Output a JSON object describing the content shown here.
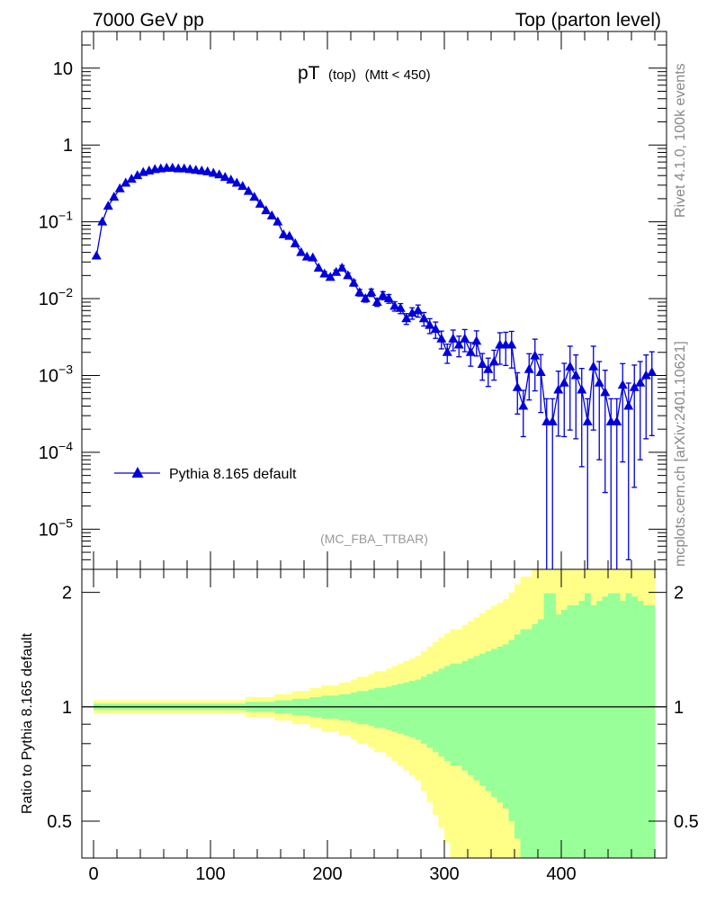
{
  "header": {
    "left": "7000 GeV pp",
    "right": "Top (parton level)"
  },
  "side": {
    "rivet": "Rivet 4.1.0,  100k events",
    "mcplots": "mcplots.cern.ch [arXiv:2401.10621]"
  },
  "colors": {
    "series": "#0000dd",
    "band_inner": "#99ff99",
    "band_outer": "#ffff88"
  },
  "chart_data": [
    {
      "type": "line",
      "title": "pT",
      "title_sub": "(top)",
      "title_cut": "(Mtt < 450)",
      "analysis": "(MC_FBA_TTBAR)",
      "xlabel": "",
      "ylabel": "",
      "yscale": "log",
      "ylim": [
        3e-06,
        30
      ],
      "xlim": [
        -10,
        490
      ],
      "y_tick_labels": [
        "10",
        "1",
        "10^-1",
        "10^-2",
        "10^-3",
        "10^-4",
        "10^-5"
      ],
      "y_tick_values": [
        10,
        1,
        0.1,
        0.01,
        0.001,
        0.0001,
        1e-05
      ],
      "series": [
        {
          "name": "Pythia 8.165 default",
          "marker": "triangle",
          "x": [
            2.5,
            7.5,
            12.5,
            17.5,
            22.5,
            27.5,
            32.5,
            37.5,
            42.5,
            47.5,
            52.5,
            57.5,
            62.5,
            67.5,
            72.5,
            77.5,
            82.5,
            87.5,
            92.5,
            97.5,
            102.5,
            107.5,
            112.5,
            117.5,
            122.5,
            127.5,
            132.5,
            137.5,
            142.5,
            147.5,
            152.5,
            157.5,
            162.5,
            167.5,
            172.5,
            177.5,
            182.5,
            187.5,
            192.5,
            197.5,
            202.5,
            207.5,
            212.5,
            217.5,
            222.5,
            227.5,
            232.5,
            237.5,
            242.5,
            247.5,
            252.5,
            257.5,
            262.5,
            267.5,
            272.5,
            277.5,
            282.5,
            287.5,
            292.5,
            297.5,
            302.5,
            307.5,
            312.5,
            317.5,
            322.5,
            327.5,
            332.5,
            337.5,
            342.5,
            347.5,
            352.5,
            357.5,
            362.5,
            367.5,
            372.5,
            377.5,
            382.5,
            387.5,
            392.5,
            397.5,
            402.5,
            407.5,
            412.5,
            417.5,
            422.5,
            427.5,
            432.5,
            437.5,
            442.5,
            447.5,
            452.5,
            457.5,
            462.5,
            467.5,
            472.5,
            477.5
          ],
          "y": [
            0.036,
            0.1,
            0.16,
            0.21,
            0.27,
            0.32,
            0.36,
            0.4,
            0.44,
            0.46,
            0.48,
            0.49,
            0.5,
            0.5,
            0.49,
            0.49,
            0.48,
            0.47,
            0.46,
            0.45,
            0.43,
            0.41,
            0.38,
            0.35,
            0.32,
            0.29,
            0.25,
            0.21,
            0.17,
            0.14,
            0.12,
            0.1,
            0.068,
            0.065,
            0.052,
            0.04,
            0.035,
            0.034,
            0.025,
            0.021,
            0.019,
            0.022,
            0.025,
            0.02,
            0.016,
            0.012,
            0.01,
            0.012,
            0.009,
            0.011,
            0.01,
            0.008,
            0.0075,
            0.0055,
            0.0065,
            0.007,
            0.0055,
            0.0045,
            0.004,
            0.003,
            0.002,
            0.003,
            0.0025,
            0.003,
            0.002,
            0.0028,
            0.0014,
            0.0012,
            0.0015,
            0.0025,
            0.0025,
            0.0025,
            0.0007,
            0.0004,
            0.0012,
            0.0018,
            0.0011,
            0.00025,
            0.00025,
            0.00065,
            0.0008,
            0.0013,
            0.001,
            0.00065,
            0.00025,
            0.0013,
            0.0008,
            0.0006,
            0.00025,
            0.00025,
            0.00075,
            0.0004,
            0.0007,
            0.0008,
            0.001,
            0.0011
          ],
          "err_rel": [
            0.02,
            0.02,
            0.02,
            0.02,
            0.02,
            0.02,
            0.02,
            0.02,
            0.02,
            0.02,
            0.02,
            0.02,
            0.02,
            0.02,
            0.02,
            0.02,
            0.02,
            0.02,
            0.02,
            0.02,
            0.02,
            0.02,
            0.02,
            0.02,
            0.02,
            0.02,
            0.03,
            0.03,
            0.03,
            0.03,
            0.03,
            0.04,
            0.04,
            0.04,
            0.05,
            0.05,
            0.05,
            0.06,
            0.06,
            0.07,
            0.07,
            0.07,
            0.08,
            0.08,
            0.09,
            0.1,
            0.1,
            0.11,
            0.12,
            0.12,
            0.13,
            0.14,
            0.15,
            0.16,
            0.17,
            0.18,
            0.2,
            0.22,
            0.24,
            0.26,
            0.28,
            0.3,
            0.3,
            0.32,
            0.34,
            0.36,
            0.38,
            0.4,
            0.42,
            0.44,
            0.46,
            0.5,
            0.55,
            0.6,
            0.6,
            0.65,
            0.7,
            0.99,
            0.99,
            0.75,
            0.8,
            0.85,
            0.85,
            0.9,
            0.99,
            0.85,
            0.9,
            0.95,
            0.99,
            0.99,
            0.9,
            0.99,
            0.95,
            0.9,
            0.85,
            0.85
          ]
        }
      ]
    },
    {
      "type": "area",
      "ylabel": "Ratio to Pythia 8.165 default",
      "ylim": [
        0.4,
        2.3
      ],
      "xlim": [
        -10,
        490
      ],
      "y_ticks": [
        0.5,
        1,
        2
      ],
      "y_tick_labels": [
        "0.5",
        "1",
        "2"
      ],
      "x_ticks": [
        0,
        100,
        200,
        300,
        400
      ],
      "x_tick_labels": [
        "0",
        "100",
        "200",
        "300",
        "400"
      ],
      "bands": [
        {
          "name": "2-sigma",
          "color": "#ffff88"
        },
        {
          "name": "1-sigma",
          "color": "#99ff99"
        }
      ],
      "reference_line": 1
    }
  ]
}
